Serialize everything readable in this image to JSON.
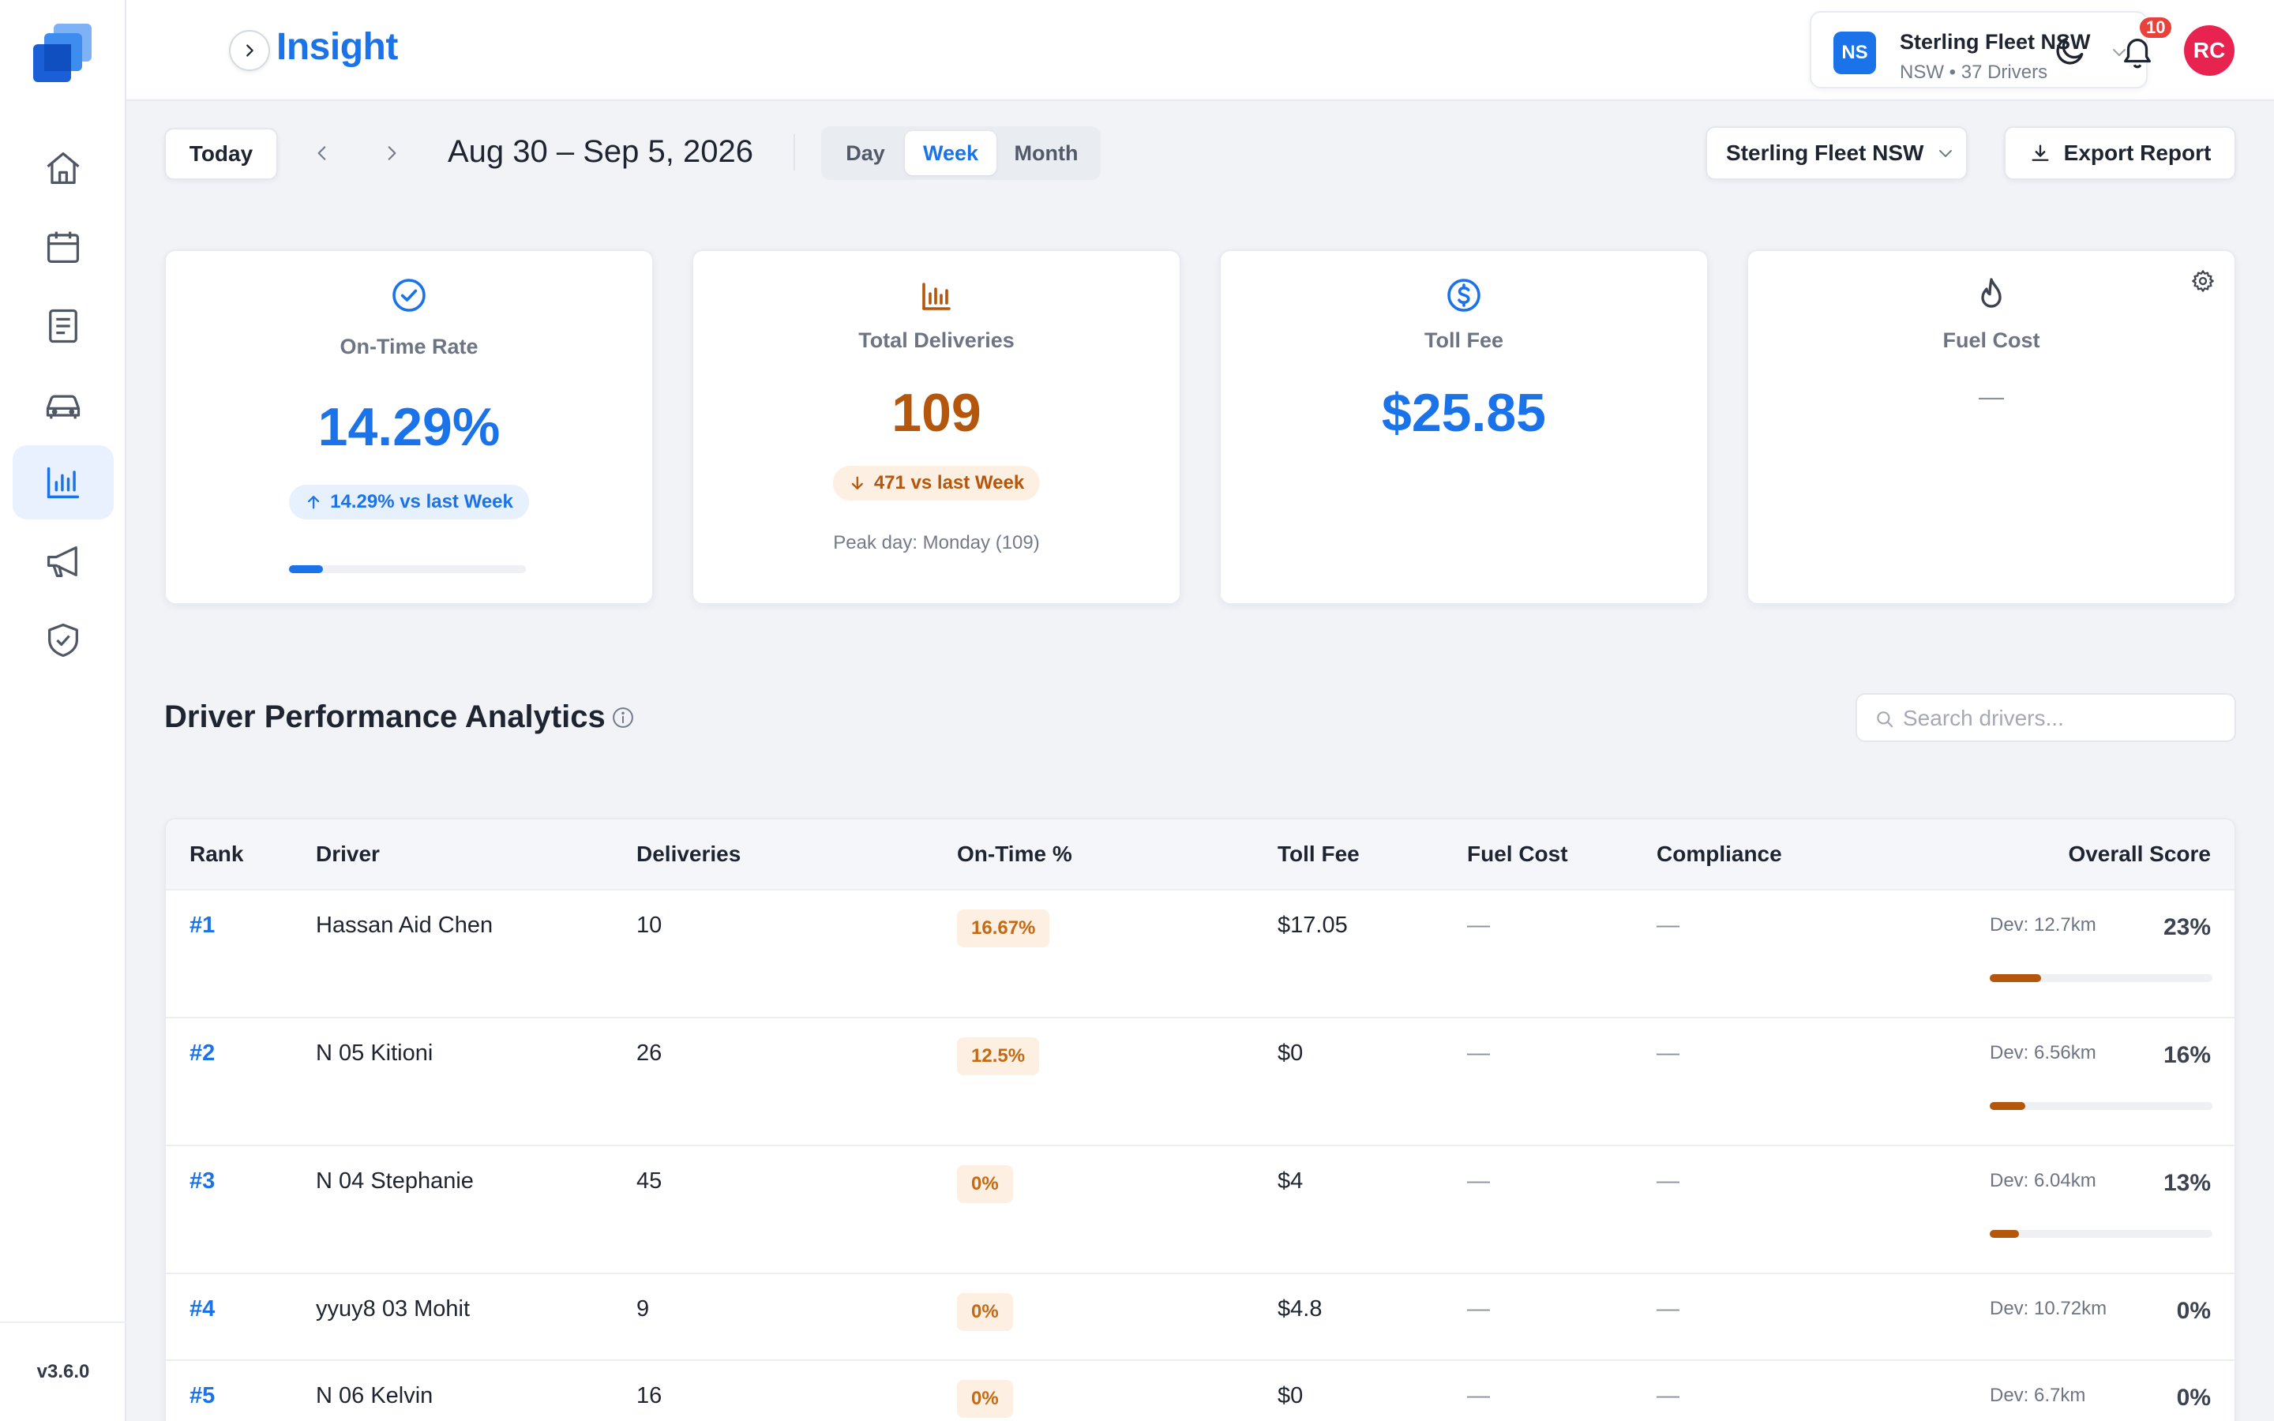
{
  "app": {
    "title": "Insight",
    "version": "v3.6.0"
  },
  "sidebar": {
    "items": [
      {
        "icon": "home-icon"
      },
      {
        "icon": "calendar-icon"
      },
      {
        "icon": "document-icon"
      },
      {
        "icon": "car-icon"
      },
      {
        "icon": "bar-chart-icon",
        "active": true
      },
      {
        "icon": "megaphone-icon"
      },
      {
        "icon": "shield-check-icon"
      }
    ]
  },
  "header": {
    "fleet": {
      "initials": "NS",
      "name": "Sterling Fleet NSW",
      "subtitle": "NSW • 37 Drivers"
    },
    "notifications": "10",
    "avatar": "RC"
  },
  "toolbar": {
    "today_label": "Today",
    "date_range": "Aug 30 – Sep 5, 2026",
    "periods": [
      "Day",
      "Week",
      "Month"
    ],
    "active_period": "Week",
    "fleet_dropdown": "Sterling Fleet NSW",
    "export_label": "Export Report"
  },
  "kpis": {
    "on_time": {
      "label": "On-Time Rate",
      "value": "14.29%",
      "change": "14.29% vs last Week",
      "progress": 0.1429
    },
    "deliveries": {
      "label": "Total Deliveries",
      "value": "109",
      "change": "471 vs last Week",
      "note": "Peak day: Monday (109)"
    },
    "toll": {
      "label": "Toll Fee",
      "value": "$25.85"
    },
    "fuel": {
      "label": "Fuel Cost",
      "value": "—"
    }
  },
  "section": {
    "title": "Driver Performance Analytics",
    "search_placeholder": "Search drivers..."
  },
  "table": {
    "headers": {
      "rank": "Rank",
      "driver": "Driver",
      "deliveries": "Deliveries",
      "on_time": "On-Time %",
      "toll": "Toll Fee",
      "fuel": "Fuel Cost",
      "compliance": "Compliance",
      "score": "Overall Score"
    },
    "rows": [
      {
        "rank": "#1",
        "driver": "Hassan Aid Chen",
        "deliveries": "10",
        "on_time": "16.67%",
        "toll": "$17.05",
        "fuel": "—",
        "compliance": "—",
        "dev": "Dev: 12.7km",
        "score": "23%",
        "score_value": 0.23
      },
      {
        "rank": "#2",
        "driver": "N 05 Kitioni",
        "deliveries": "26",
        "on_time": "12.5%",
        "toll": "$0",
        "fuel": "—",
        "compliance": "—",
        "dev": "Dev: 6.56km",
        "score": "16%",
        "score_value": 0.16
      },
      {
        "rank": "#3",
        "driver": "N 04 Stephanie",
        "deliveries": "45",
        "on_time": "0%",
        "toll": "$4",
        "fuel": "—",
        "compliance": "—",
        "dev": "Dev: 6.04km",
        "score": "13%",
        "score_value": 0.13
      },
      {
        "rank": "#4",
        "driver": "yyuy8 03 Mohit",
        "deliveries": "9",
        "on_time": "0%",
        "toll": "$4.8",
        "fuel": "—",
        "compliance": "—",
        "dev": "Dev: 10.72km",
        "score": "0%",
        "score_value": 0
      },
      {
        "rank": "#5",
        "driver": "N 06 Kelvin",
        "deliveries": "16",
        "on_time": "0%",
        "toll": "$0",
        "fuel": "—",
        "compliance": "—",
        "dev": "Dev: 6.7km",
        "score": "0%",
        "score_value": 0
      }
    ]
  },
  "colors": {
    "accent": "#1a73e8",
    "warning": "#b4560b",
    "badge": "#e8423d",
    "avatar": "#e8234f"
  }
}
